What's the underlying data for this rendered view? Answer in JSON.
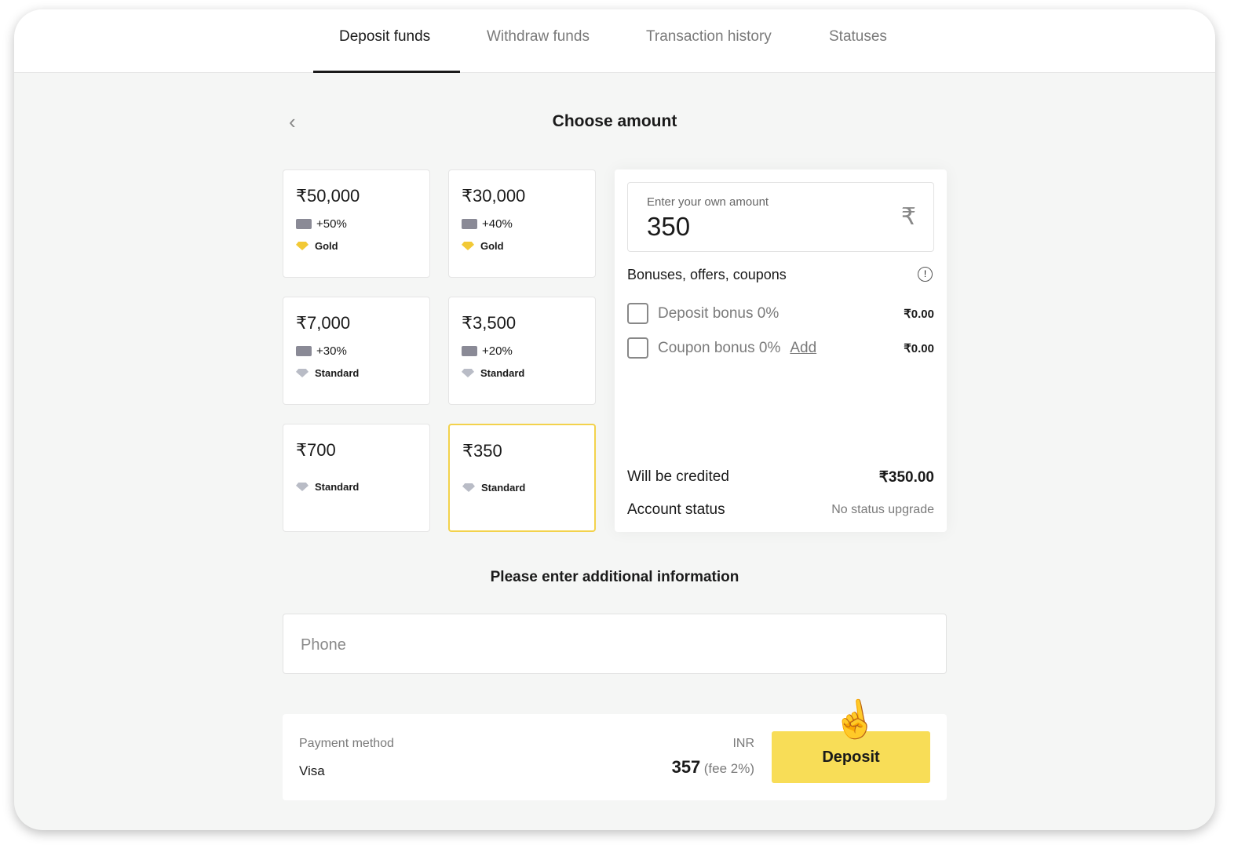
{
  "tabs": [
    {
      "label": "Deposit funds",
      "active": true
    },
    {
      "label": "Withdraw funds"
    },
    {
      "label": "Transaction history"
    },
    {
      "label": "Statuses"
    }
  ],
  "page_title": "Choose amount",
  "amounts": [
    {
      "amount": "₹50,000",
      "bonus": "+50%",
      "tier": "Gold"
    },
    {
      "amount": "₹30,000",
      "bonus": "+40%",
      "tier": "Gold"
    },
    {
      "amount": "₹7,000",
      "bonus": "+30%",
      "tier": "Standard"
    },
    {
      "amount": "₹3,500",
      "bonus": "+20%",
      "tier": "Standard"
    },
    {
      "amount": "₹700",
      "tier": "Standard"
    },
    {
      "amount": "₹350",
      "tier": "Standard",
      "selected": true
    }
  ],
  "custom": {
    "label": "Enter your own amount",
    "value": "350",
    "currency_symbol": "₹"
  },
  "bonuses": {
    "title": "Bonuses, offers, coupons",
    "deposit_bonus": "Deposit bonus 0%",
    "deposit_value": "₹0.00",
    "coupon_bonus": "Coupon bonus 0%",
    "coupon_add": "Add",
    "coupon_value": "₹0.00"
  },
  "summary": {
    "credited_label": "Will be credited",
    "credited_value": "₹350.00",
    "status_label": "Account status",
    "status_value": "No status upgrade"
  },
  "additional_title": "Please enter additional information",
  "phone_placeholder": "Phone",
  "payment": {
    "label": "Payment method",
    "method": "Visa",
    "currency": "INR",
    "total": "357",
    "fee": "(fee 2%)",
    "button": "Deposit"
  },
  "colors": {
    "accent": "#f8dd57",
    "gold": "#f2c936",
    "standard": "#b9bcc6"
  }
}
